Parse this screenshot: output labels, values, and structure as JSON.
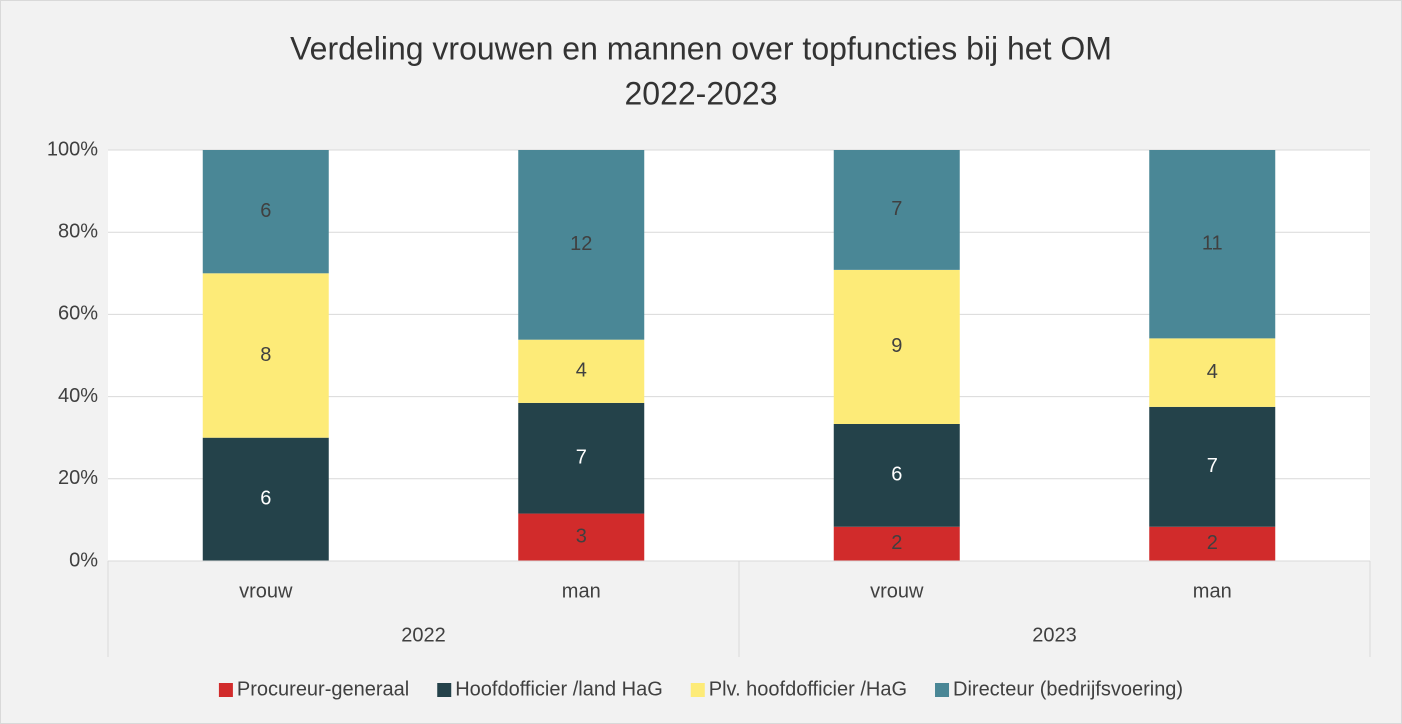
{
  "chart_data": {
    "type": "bar",
    "stack": "percent",
    "title": [
      "Verdeling vrouwen en mannen over topfuncties bij het OM",
      "2022-2023"
    ],
    "groups": [
      {
        "name": "2022",
        "categories": [
          "vrouw",
          "man"
        ]
      },
      {
        "name": "2023",
        "categories": [
          "vrouw",
          "man"
        ]
      }
    ],
    "series": [
      {
        "name": "Procureur-generaal",
        "color": "#d12b2b",
        "values": [
          null,
          3,
          2,
          2
        ]
      },
      {
        "name": "Hoofdofficier /land HaG",
        "color": "#24424a",
        "values": [
          6,
          7,
          6,
          7
        ]
      },
      {
        "name": "Plv. hoofdofficier /HaG",
        "color": "#fdeb78",
        "values": [
          8,
          4,
          9,
          4
        ]
      },
      {
        "name": "Directeur (bedrijfsvoering)",
        "color": "#4a8796",
        "values": [
          6,
          12,
          7,
          11
        ]
      }
    ],
    "ylim": [
      0,
      100
    ],
    "yticks": [
      {
        "value": 0,
        "label": "0%"
      },
      {
        "value": 20,
        "label": "20%"
      },
      {
        "value": 40,
        "label": "40%"
      },
      {
        "value": 60,
        "label": "60%"
      },
      {
        "value": 80,
        "label": "80%"
      },
      {
        "value": 100,
        "label": "100%"
      }
    ],
    "grid": true,
    "legend": "bottom"
  }
}
